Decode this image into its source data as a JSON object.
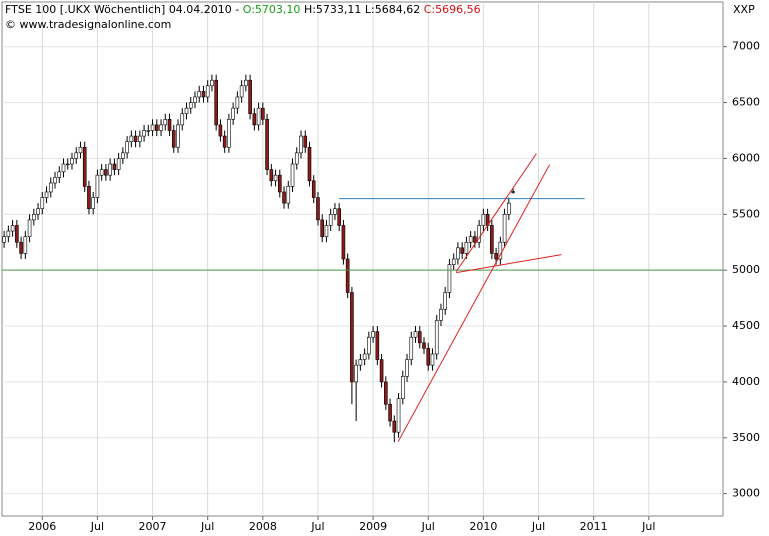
{
  "chart_data": {
    "type": "candlestick",
    "header": {
      "title": "FTSE 100 [.UKX  Wöchentlich] 04.04.2010 -",
      "open": "O:5703,10",
      "high": "H:5733,11",
      "low": "L:5684,62",
      "close": "C:5696,56",
      "source": "© www.tradesignalonline.com",
      "symbol": "XXP"
    },
    "xlim": [
      -0.5,
      169.5
    ],
    "ylim": [
      2800,
      7400
    ],
    "yticks": [
      3000,
      3500,
      4000,
      4500,
      5000,
      5500,
      6000,
      6500,
      7000
    ],
    "xticks": [
      {
        "value": 9,
        "label": "2006"
      },
      {
        "value": 22,
        "label": "Jul"
      },
      {
        "value": 35,
        "label": "2007"
      },
      {
        "value": 48,
        "label": "Jul"
      },
      {
        "value": 61,
        "label": "2008"
      },
      {
        "value": 74,
        "label": "Jul"
      },
      {
        "value": 87,
        "label": "2009"
      },
      {
        "value": 100,
        "label": "Jul"
      },
      {
        "value": 113,
        "label": "2010"
      },
      {
        "value": 126,
        "label": "Jul"
      },
      {
        "value": 139,
        "label": "2011"
      },
      {
        "value": 152,
        "label": "Jul"
      }
    ],
    "grid": true,
    "up_color": "#ffffff",
    "down_color": "#8b1a1a",
    "wick_color": "#000000",
    "open": [
      5250,
      5300,
      5350,
      5400,
      5250,
      5150,
      5300,
      5450,
      5500,
      5550,
      5650,
      5700,
      5780,
      5830,
      5880,
      5950,
      5950,
      6000,
      6050,
      6100,
      5750,
      5550,
      5650,
      5850,
      5900,
      5850,
      5950,
      5900,
      6000,
      6050,
      6150,
      6200,
      6150,
      6200,
      6250,
      6250,
      6300,
      6250,
      6300,
      6350,
      6250,
      6100,
      6300,
      6400,
      6450,
      6500,
      6550,
      6600,
      6550,
      6650,
      6700,
      6300,
      6200,
      6100,
      6350,
      6450,
      6550,
      6650,
      6700,
      6400,
      6300,
      6450,
      6350,
      5900,
      5800,
      5850,
      5700,
      5600,
      5750,
      5950,
      6050,
      6200,
      6100,
      5800,
      5650,
      5450,
      5300,
      5400,
      5500,
      5550,
      5400,
      5100,
      4800,
      4000,
      4150,
      4200,
      4250,
      4400,
      4450,
      4200,
      4000,
      3800,
      3650,
      3550,
      3850,
      4050,
      4200,
      4400,
      4450,
      4350,
      4300,
      4150,
      4250,
      4550,
      4650,
      4800,
      5050,
      5100,
      5200,
      5150,
      5250,
      5300,
      5250,
      5400,
      5500,
      5400,
      5150,
      5100,
      5250,
      5500,
      5703.1
    ],
    "high": [
      5350,
      5400,
      5450,
      5450,
      5300,
      5350,
      5500,
      5550,
      5600,
      5700,
      5750,
      5830,
      5880,
      5930,
      6000,
      6000,
      6050,
      6100,
      6150,
      6150,
      5800,
      5700,
      5900,
      5950,
      5950,
      6000,
      6000,
      6050,
      6100,
      6200,
      6250,
      6250,
      6250,
      6300,
      6300,
      6350,
      6350,
      6350,
      6400,
      6400,
      6300,
      6350,
      6450,
      6500,
      6550,
      6600,
      6650,
      6650,
      6700,
      6750,
      6750,
      6350,
      6250,
      6400,
      6500,
      6600,
      6700,
      6750,
      6750,
      6450,
      6500,
      6500,
      6400,
      5950,
      5900,
      5900,
      5750,
      5800,
      6000,
      6100,
      6250,
      6250,
      6150,
      5850,
      5700,
      5500,
      5450,
      5550,
      5600,
      5600,
      5450,
      5150,
      4850,
      4200,
      4250,
      4300,
      4450,
      4500,
      4500,
      4250,
      4050,
      3850,
      3700,
      3900,
      4100,
      4250,
      4450,
      4500,
      4500,
      4400,
      4350,
      4300,
      4600,
      4700,
      4850,
      5100,
      5150,
      5250,
      5250,
      5300,
      5350,
      5350,
      5450,
      5550,
      5550,
      5450,
      5200,
      5300,
      5550,
      5650,
      5733.11
    ],
    "low": [
      5200,
      5250,
      5300,
      5200,
      5100,
      5100,
      5250,
      5400,
      5450,
      5500,
      5600,
      5650,
      5730,
      5780,
      5830,
      5900,
      5900,
      5950,
      6000,
      5700,
      5500,
      5500,
      5600,
      5800,
      5800,
      5800,
      5850,
      5850,
      5950,
      6000,
      6100,
      6100,
      6100,
      6150,
      6200,
      6200,
      6200,
      6200,
      6250,
      6200,
      6050,
      6050,
      6250,
      6350,
      6400,
      6450,
      6500,
      6500,
      6500,
      6600,
      6250,
      6150,
      6050,
      6050,
      6300,
      6400,
      6500,
      6600,
      6350,
      6250,
      6250,
      6300,
      5850,
      5750,
      5750,
      5650,
      5550,
      5550,
      5700,
      5900,
      6000,
      6050,
      5750,
      5600,
      5400,
      5250,
      5250,
      5350,
      5450,
      5350,
      5050,
      4750,
      3800,
      3650,
      4100,
      4150,
      4200,
      4350,
      4150,
      3950,
      3750,
      3600,
      3460,
      3500,
      3800,
      4000,
      4150,
      4350,
      4300,
      4250,
      4100,
      4100,
      4200,
      4500,
      4600,
      4750,
      5000,
      5050,
      5100,
      5100,
      5200,
      5200,
      5200,
      5350,
      5350,
      5100,
      5050,
      5050,
      5200,
      5450,
      5684.62
    ],
    "close": [
      5300,
      5350,
      5400,
      5250,
      5150,
      5300,
      5450,
      5500,
      5550,
      5650,
      5700,
      5780,
      5830,
      5880,
      5950,
      5950,
      6000,
      6050,
      6100,
      5750,
      5550,
      5650,
      5850,
      5900,
      5850,
      5950,
      5900,
      6000,
      6050,
      6150,
      6200,
      6150,
      6200,
      6250,
      6250,
      6300,
      6250,
      6300,
      6350,
      6250,
      6100,
      6300,
      6400,
      6450,
      6500,
      6550,
      6600,
      6550,
      6650,
      6700,
      6300,
      6200,
      6100,
      6350,
      6450,
      6550,
      6650,
      6700,
      6400,
      6300,
      6450,
      6350,
      5900,
      5800,
      5850,
      5700,
      5600,
      5750,
      5950,
      6050,
      6200,
      6100,
      5800,
      5650,
      5450,
      5300,
      5400,
      5500,
      5550,
      5400,
      5100,
      4800,
      4000,
      4150,
      4200,
      4250,
      4400,
      4450,
      4200,
      4000,
      3800,
      3650,
      3550,
      3850,
      4050,
      4200,
      4400,
      4450,
      4350,
      4300,
      4150,
      4250,
      4550,
      4650,
      4800,
      5050,
      5100,
      5200,
      5150,
      5250,
      5300,
      5250,
      5400,
      5500,
      5400,
      5150,
      5100,
      5250,
      5500,
      5600,
      5696.56
    ],
    "trendlines": [
      {
        "color": "#4a9a4a",
        "x1": -0.5,
        "y1": 5000,
        "x2": 169.5,
        "y2": 5000
      },
      {
        "color": "#2f7fc0",
        "x1": 79,
        "y1": 5640,
        "x2": 136.9,
        "y2": 5640
      },
      {
        "color": "#e02020",
        "x1": 92.9,
        "y1": 3465,
        "x2": 128.6,
        "y2": 5944
      },
      {
        "color": "#e02020",
        "x1": 106.6,
        "y1": 4987,
        "x2": 125.5,
        "y2": 6043
      },
      {
        "color": "#e02020",
        "x1": 106.6,
        "y1": 4978,
        "x2": 131.4,
        "y2": 5139
      }
    ]
  }
}
